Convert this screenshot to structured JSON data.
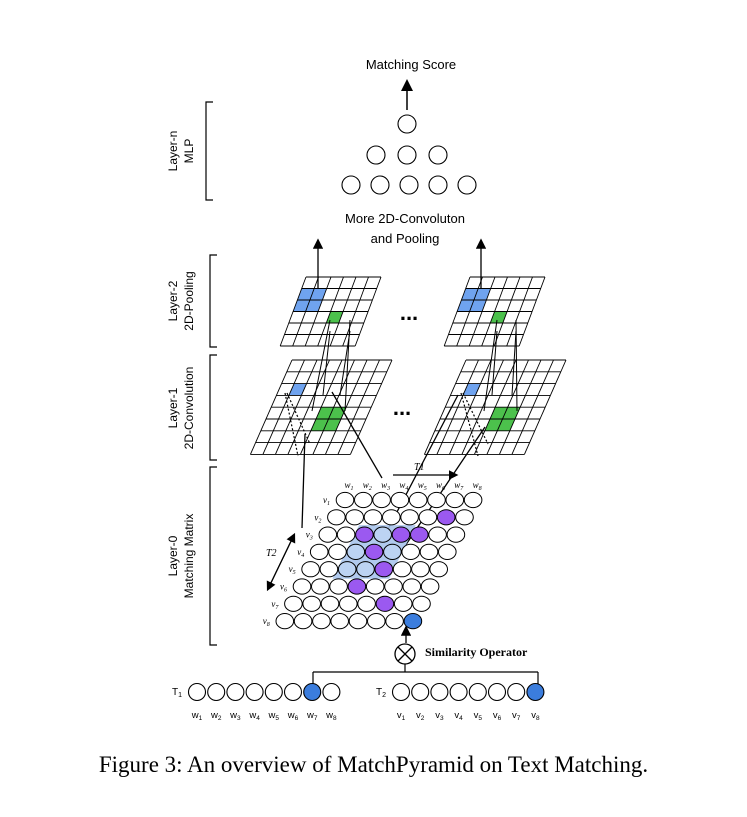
{
  "labels": {
    "matching_score": "Matching Score",
    "more_conv_line1": "More 2D-Convoluton",
    "more_conv_line2": "and Pooling",
    "similarity_operator": "Similarity Operator",
    "dots": "..."
  },
  "layers": [
    {
      "name": "Layer-n",
      "desc": "MLP"
    },
    {
      "name": "Layer-2",
      "desc": "2D-Pooling"
    },
    {
      "name": "Layer-1",
      "desc": "2D-Convolution"
    },
    {
      "name": "Layer-0",
      "desc": "Matching Matrix"
    }
  ],
  "matrix": {
    "row_labels": [
      "v1",
      "v2",
      "v3",
      "v4",
      "v5",
      "v6",
      "v7",
      "v8"
    ],
    "col_labels": [
      "w1",
      "w2",
      "w3",
      "w4",
      "w5",
      "w6",
      "w7",
      "w8"
    ],
    "axis_t1": "T1",
    "axis_t2": "T2"
  },
  "sequences": {
    "t1_label": "T1",
    "t2_label": "T2",
    "t1_words": [
      "w1",
      "w2",
      "w3",
      "w4",
      "w5",
      "w6",
      "w7",
      "w8"
    ],
    "t2_words": [
      "v1",
      "v2",
      "v3",
      "v4",
      "v5",
      "v6",
      "v7",
      "v8"
    ]
  },
  "colors": {
    "blue_cell": "#6fa3ef",
    "green_cell": "#4cc14c",
    "purple_node": "#9b59f0",
    "blue_node": "#3b7ddd",
    "light_blue_window": "#a9c4ec"
  },
  "caption": "Figure 3: An overview of MatchPyramid on Text Matching."
}
